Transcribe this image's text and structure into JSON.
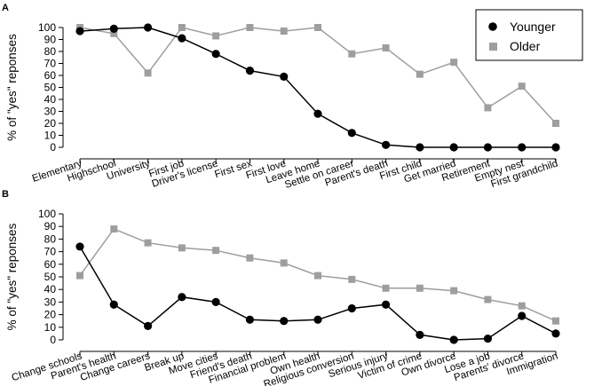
{
  "colors": {
    "younger": "#000000",
    "older": "#9e9e9e",
    "axis": "#000000"
  },
  "chart_data": [
    {
      "panel": "A",
      "type": "line",
      "ylabel": "% of \"yes\" reponses",
      "ylim": [
        0,
        100
      ],
      "yticks": [
        0,
        10,
        20,
        30,
        40,
        50,
        60,
        70,
        80,
        90,
        100
      ],
      "grid": false,
      "legend_position": "top-right",
      "categories": [
        "Elementary",
        "Highschool",
        "University",
        "First job",
        "Driver's license",
        "First sex",
        "First love",
        "Leave home",
        "Settle on career",
        "Parent's death",
        "First child",
        "Get married",
        "Retirement",
        "Empty nest",
        "First grandchild"
      ],
      "series": [
        {
          "name": "Younger",
          "marker": "circle",
          "values": [
            97,
            99,
            100,
            91,
            78,
            64,
            59,
            28,
            12,
            2,
            0,
            0,
            0,
            0,
            0
          ]
        },
        {
          "name": "Older",
          "marker": "square",
          "values": [
            100,
            95,
            62,
            100,
            93,
            100,
            97,
            100,
            78,
            83,
            61,
            71,
            33,
            51,
            20
          ]
        }
      ]
    },
    {
      "panel": "B",
      "type": "line",
      "ylabel": "% of \"yes\" reponses",
      "ylim": [
        0,
        100
      ],
      "yticks": [
        0,
        10,
        20,
        30,
        40,
        50,
        60,
        70,
        80,
        90,
        100
      ],
      "grid": false,
      "categories": [
        "Change schools",
        "Parent's health",
        "Change careers",
        "Break up",
        "Move cities",
        "Friend's death",
        "Financial problem",
        "Own health",
        "Religious conversion",
        "Serious injury",
        "Victim of crime",
        "Own divorce",
        "Lose a job",
        "Parents' divorce",
        "Immigration"
      ],
      "series": [
        {
          "name": "Younger",
          "marker": "circle",
          "values": [
            74,
            28,
            11,
            34,
            30,
            16,
            15,
            16,
            25,
            28,
            4,
            0,
            1,
            19,
            5
          ]
        },
        {
          "name": "Older",
          "marker": "square",
          "values": [
            51,
            88,
            77,
            73,
            71,
            65,
            61,
            51,
            48,
            41,
            41,
            39,
            32,
            27,
            15
          ]
        }
      ]
    }
  ]
}
